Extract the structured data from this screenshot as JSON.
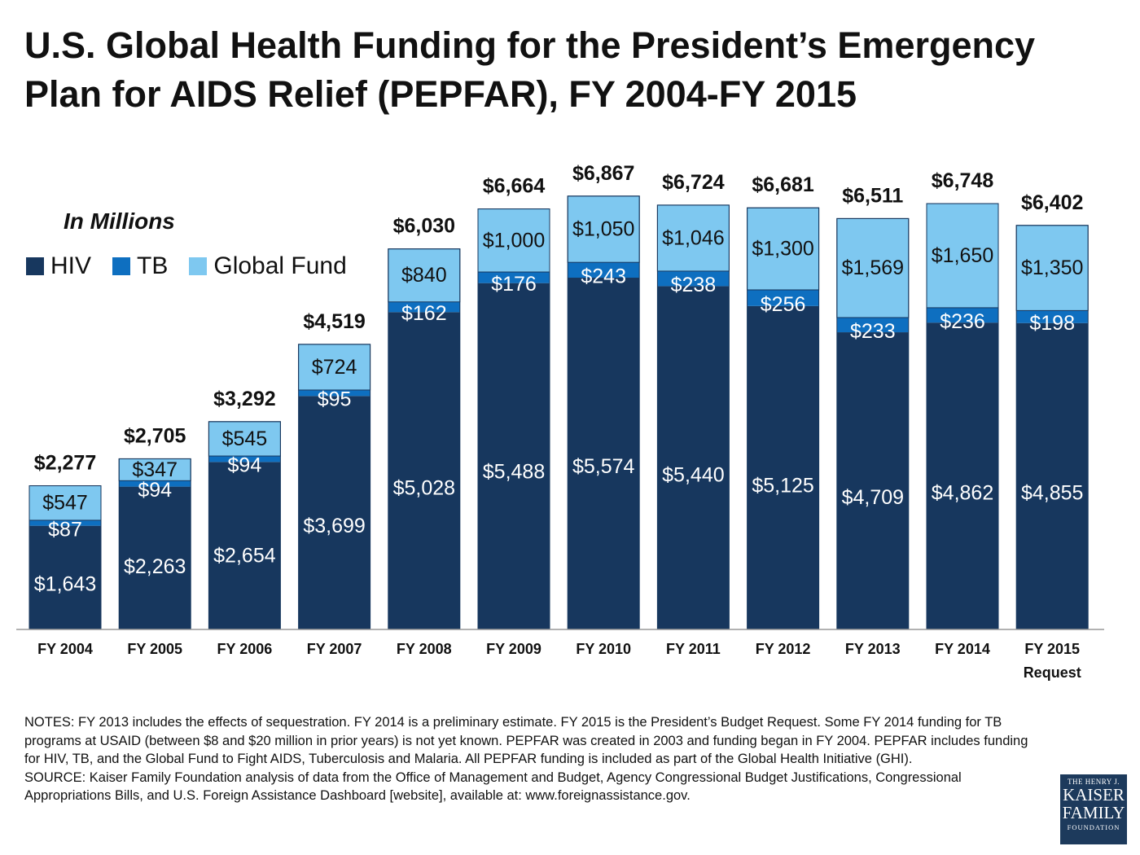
{
  "title": "U.S. Global Health Funding for the President’s Emergency Plan for AIDS Relief (PEPFAR), FY 2004-FY 2015",
  "units_label": "In Millions",
  "legend": [
    {
      "label": "HIV",
      "color": "#17375e"
    },
    {
      "label": "TB",
      "color": "#0e6fc0"
    },
    {
      "label": "Global Fund",
      "color": "#7ec8f0"
    }
  ],
  "chart_data": {
    "type": "bar",
    "stacked": true,
    "title": "U.S. Global Health Funding for the President’s Emergency Plan for AIDS Relief (PEPFAR), FY 2004-FY 2015",
    "ylabel": "In Millions",
    "ylim": [
      0,
      7300
    ],
    "categories": [
      "FY 2004",
      "FY 2005",
      "FY 2006",
      "FY 2007",
      "FY 2008",
      "FY 2009",
      "FY 2010",
      "FY 2011",
      "FY 2012",
      "FY 2013",
      "FY 2014",
      "FY 2015 Request"
    ],
    "series": [
      {
        "name": "HIV",
        "color": "#17375e",
        "values": [
          1643,
          2263,
          2654,
          3699,
          5028,
          5488,
          5574,
          5440,
          5125,
          4709,
          4862,
          4855
        ],
        "labels": [
          "$1,643",
          "$2,263",
          "$2,654",
          "$3,699",
          "$5,028",
          "$5,488",
          "$5,574",
          "$5,440",
          "$5,125",
          "$4,709",
          "$4,862",
          "$4,855"
        ]
      },
      {
        "name": "TB",
        "color": "#0e6fc0",
        "values": [
          87,
          94,
          94,
          95,
          162,
          176,
          243,
          238,
          256,
          233,
          236,
          198
        ],
        "labels": [
          "$87",
          "$94",
          "$94",
          "$95",
          "$162",
          "$176",
          "$243",
          "$238",
          "$256",
          "$233",
          "$236",
          "$198"
        ]
      },
      {
        "name": "Global Fund",
        "color": "#7ec8f0",
        "values": [
          547,
          347,
          545,
          724,
          840,
          1000,
          1050,
          1046,
          1300,
          1569,
          1650,
          1350
        ],
        "labels": [
          "$547",
          "$347",
          "$545",
          "$724",
          "$840",
          "$1,000",
          "$1,050",
          "$1,046",
          "$1,300",
          "$1,569",
          "$1,650",
          "$1,350"
        ]
      }
    ],
    "totals": [
      2277,
      2705,
      3292,
      4519,
      6030,
      6664,
      6867,
      6724,
      6681,
      6511,
      6748,
      6402
    ],
    "total_labels": [
      "$2,277",
      "$2,705",
      "$3,292",
      "$4,519",
      "$6,030",
      "$6,664",
      "$6,867",
      "$6,724",
      "$6,681",
      "$6,511",
      "$6,748",
      "$6,402"
    ],
    "grid": false,
    "legend_position": "top-left"
  },
  "notes": "NOTES: FY 2013 includes the effects of sequestration. FY 2014 is a preliminary estimate. FY 2015 is the President’s Budget Request. Some FY 2014 funding for TB programs at USAID (between $8 and $20 million in prior years) is not yet known. PEPFAR was created in 2003 and funding began in FY 2004. PEPFAR includes funding for HIV, TB, and the Global Fund to Fight AIDS, Tuberculosis and Malaria. All PEPFAR funding is included as part of the Global Health Initiative (GHI).",
  "source": "SOURCE: Kaiser Family Foundation analysis of data from the Office of Management and Budget, Agency Congressional Budget Justifications, Congressional Appropriations Bills, and U.S. Foreign Assistance Dashboard [website], available at: www.foreignassistance.gov.",
  "logo": {
    "line1": "THE HENRY J.",
    "line2": "KAISER",
    "line3": "FAMILY",
    "line4": "FOUNDATION"
  }
}
